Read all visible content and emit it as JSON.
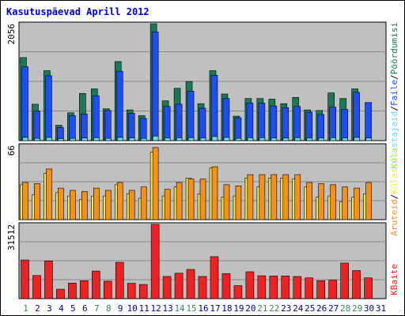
{
  "chart_data": {
    "type": "bar",
    "title": "Kasutuspäevad Aprill 2012",
    "categories": [
      "1",
      "2",
      "3",
      "4",
      "5",
      "6",
      "7",
      "8",
      "9",
      "10",
      "11",
      "12",
      "13",
      "14",
      "15",
      "16",
      "17",
      "18",
      "19",
      "20",
      "21",
      "22",
      "23",
      "24",
      "25",
      "26",
      "27",
      "28",
      "29",
      "30",
      "31"
    ],
    "weekend_days": [
      1,
      7,
      8,
      14,
      15,
      21,
      22,
      28,
      29
    ],
    "category_colors": {
      "weekday": "#000080",
      "weekend": "#2e8b57"
    },
    "panels": [
      {
        "name": "hits",
        "ylabel_top": "2056",
        "ylim": [
          0,
          2056
        ],
        "series": [
          {
            "name": "Pöördumisi",
            "color": "#1a7a55",
            "values": [
              1460,
              640,
              1230,
              270,
              490,
              830,
              910,
              560,
              1390,
              540,
              440,
              2056,
              700,
              920,
              1040,
              650,
              1230,
              820,
              430,
              740,
              740,
              730,
              650,
              760,
              540,
              530,
              840,
              740,
              910,
              0,
              0
            ]
          },
          {
            "name": "Faile",
            "color": "#1f4ef0",
            "values": [
              1300,
              520,
              1140,
              230,
              440,
              470,
              790,
              530,
              1220,
              480,
              390,
              1910,
              600,
              640,
              870,
              570,
              1150,
              740,
              400,
              660,
              660,
              610,
              580,
              600,
              500,
              460,
              590,
              550,
              850,
              670,
              0
            ]
          },
          {
            "name": "Külastajaid",
            "color": "#66ddee",
            "values": [
              55,
              40,
              55,
              35,
              40,
              45,
              50,
              40,
              55,
              45,
              40,
              80,
              45,
              50,
              50,
              45,
              70,
              55,
              40,
              50,
              50,
              45,
              45,
              50,
              45,
              45,
              50,
              45,
              55,
              45,
              0
            ]
          }
        ]
      },
      {
        "name": "visits",
        "ylabel_top": "66",
        "ylim": [
          0,
          66
        ],
        "series": [
          {
            "name": "Külastusi",
            "color": "#f5e642",
            "values": [
              31,
              22,
              41,
              24,
              21,
              18,
              21,
              21,
              31,
              23,
              19,
              60,
              21,
              29,
              37,
              23,
              46,
              20,
              21,
              37,
              29,
              37,
              37,
              36,
              29,
              20,
              21,
              16,
              20,
              23,
              0
            ]
          },
          {
            "name": "Aruteid",
            "color": "#f5901a",
            "values": [
              33,
              32,
              45,
              28,
              26,
              25,
              28,
              26,
              33,
              26,
              29,
              64,
              27,
              33,
              36,
              36,
              47,
              31,
              30,
              40,
              40,
              40,
              40,
              40,
              33,
              32,
              31,
              29,
              28,
              33,
              0
            ]
          }
        ]
      },
      {
        "name": "kbytes",
        "ylabel_top": "31512",
        "ylim": [
          0,
          31512
        ],
        "series": [
          {
            "name": "KBaite",
            "color": "#ee2222",
            "values": [
              16400,
              9800,
              16000,
              4000,
              6600,
              7600,
              11700,
              7400,
              15400,
              6500,
              6000,
              31512,
              9400,
              10800,
              12400,
              9400,
              17800,
              10600,
              5500,
              11400,
              9700,
              9600,
              9600,
              9400,
              8800,
              7600,
              7800,
              15100,
              11900,
              8800,
              0
            ]
          }
        ]
      }
    ],
    "legend": {
      "top": [
        {
          "text": "Pöördumisi",
          "color": "#1a7a55"
        },
        {
          "text": "Faile",
          "color": "#1f4ef0"
        },
        {
          "text": "Külastajaid",
          "color": "#66ddee"
        }
      ],
      "middle": [
        {
          "text": "Aruteid",
          "color": "#f5901a"
        },
        {
          "text": "Külastusi",
          "color": "#f5e642"
        }
      ],
      "bottom": [
        {
          "text": "KBaite",
          "color": "#ee2222"
        }
      ],
      "separator": "/"
    },
    "grid": true,
    "legend_position": "right-vertical"
  }
}
